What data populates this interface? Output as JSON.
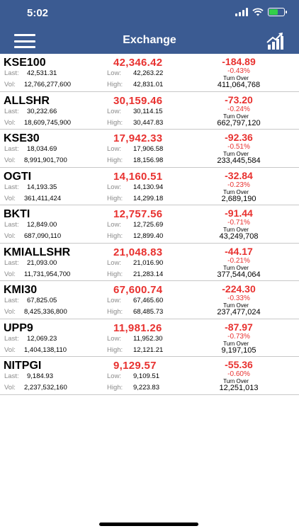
{
  "status_bar": {
    "time": "5:02"
  },
  "nav": {
    "title": "Exchange"
  },
  "labels": {
    "last": "Last:",
    "vol": "Vol:",
    "low": "Low:",
    "high": "High:",
    "turnover": "Turn Over"
  },
  "colors": {
    "header": "#3b5b92",
    "negative": "#e8312f"
  },
  "indices": [
    {
      "name": "KSE100",
      "last": "42,531.31",
      "vol": "12,766,277,600",
      "price": "42,346.42",
      "low": "42,263.22",
      "high": "42,831.01",
      "change": "-184.89",
      "pct": "-0.43%",
      "turnover": "411,064,768"
    },
    {
      "name": "ALLSHR",
      "last": "30,232.66",
      "vol": "18,609,745,900",
      "price": "30,159.46",
      "low": "30,114.15",
      "high": "30,447.83",
      "change": "-73.20",
      "pct": "-0.24%",
      "turnover": "662,797,120"
    },
    {
      "name": "KSE30",
      "last": "18,034.69",
      "vol": "8,991,901,700",
      "price": "17,942.33",
      "low": "17,906.58",
      "high": "18,156.98",
      "change": "-92.36",
      "pct": "-0.51%",
      "turnover": "233,445,584"
    },
    {
      "name": "OGTI",
      "last": "14,193.35",
      "vol": "361,411,424",
      "price": "14,160.51",
      "low": "14,130.94",
      "high": "14,299.18",
      "change": "-32.84",
      "pct": "-0.23%",
      "turnover": "2,689,190"
    },
    {
      "name": "BKTI",
      "last": "12,849.00",
      "vol": "687,090,110",
      "price": "12,757.56",
      "low": "12,725.69",
      "high": "12,899.40",
      "change": "-91.44",
      "pct": "-0.71%",
      "turnover": "43,249,708"
    },
    {
      "name": "KMIALLSHR",
      "last": "21,093.00",
      "vol": "11,731,954,700",
      "price": "21,048.83",
      "low": "21,016.90",
      "high": "21,283.14",
      "change": "-44.17",
      "pct": "-0.21%",
      "turnover": "377,544,064"
    },
    {
      "name": "KMI30",
      "last": "67,825.05",
      "vol": "8,425,336,800",
      "price": "67,600.74",
      "low": "67,465.60",
      "high": "68,485.73",
      "change": "-224.30",
      "pct": "-0.33%",
      "turnover": "237,477,024"
    },
    {
      "name": "UPP9",
      "last": "12,069.23",
      "vol": "1,404,138,110",
      "price": "11,981.26",
      "low": "11,952.30",
      "high": "12,121.21",
      "change": "-87.97",
      "pct": "-0.73%",
      "turnover": "9,197,105"
    },
    {
      "name": "NITPGI",
      "last": "9,184.93",
      "vol": "2,237,532,160",
      "price": "9,129.57",
      "low": "9,109.51",
      "high": "9,223.83",
      "change": "-55.36",
      "pct": "-0.60%",
      "turnover": "12,251,013"
    }
  ]
}
